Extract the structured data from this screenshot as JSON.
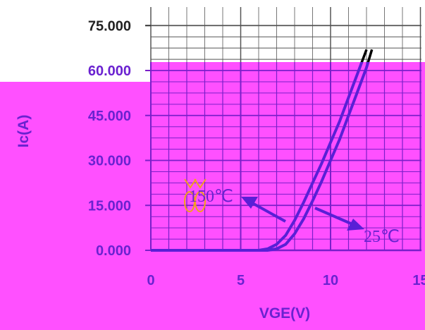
{
  "chart_data": {
    "type": "line",
    "xlabel": "VGE(V)",
    "ylabel": "Ic(A)",
    "xlim": [
      0,
      15
    ],
    "ylim": [
      0,
      75
    ],
    "x_ticks": [
      "0",
      "5",
      "10",
      "15"
    ],
    "y_ticks": [
      "0.000",
      "15.000",
      "30.000",
      "45.000",
      "60.000",
      "75.000"
    ],
    "grid": true,
    "series": [
      {
        "name": "150℃",
        "x": [
          0,
          5,
          6,
          6.5,
          7,
          7.5,
          8,
          8.5,
          9,
          9.5,
          10,
          10.5,
          11,
          11.5,
          12
        ],
        "y": [
          0,
          0,
          0,
          0.5,
          2,
          5,
          10,
          16,
          22.5,
          29,
          36,
          43,
          51,
          59,
          67
        ]
      },
      {
        "name": "25℃",
        "x": [
          0,
          5,
          6.5,
          7,
          7.5,
          8,
          8.5,
          9,
          9.5,
          10,
          10.5,
          11,
          11.5,
          12,
          12.3
        ],
        "y": [
          0,
          0,
          0,
          0.5,
          2,
          5.5,
          10.5,
          16.5,
          23,
          30,
          37,
          45,
          53,
          61,
          67
        ]
      }
    ],
    "annotations": [
      "150℃",
      "25℃"
    ],
    "colors": {
      "background": "#ff50ff",
      "upper_background": "#ffffff",
      "curve": "#5a1fd6",
      "upper_curve": "#000000",
      "grid": "#7a1fc9",
      "text": "#6a22d0",
      "marker_outline": "#f2a21b"
    }
  }
}
